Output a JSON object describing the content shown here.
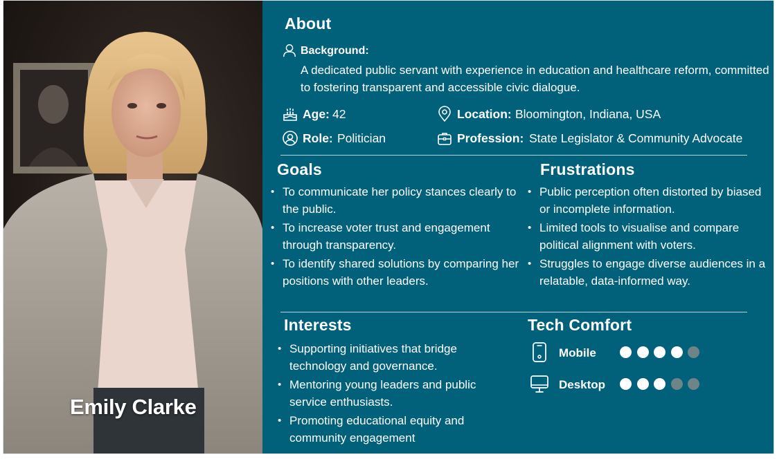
{
  "persona": {
    "name": "Emily Clarke",
    "photo_alt": "Portrait of Emily Clarke"
  },
  "about": {
    "title": "About",
    "background_label": "Background:",
    "background_text": "A dedicated public servant with experience in education and healthcare reform, committed to fostering transparent and accessible civic dialogue.",
    "age_label": "Age:",
    "age_value": "42",
    "location_label": "Location:",
    "location_value": "Bloomington, Indiana, USA",
    "role_label": "Role:",
    "role_value": "Politician",
    "profession_label": "Profession:",
    "profession_value": "State Legislator & Community Advocate"
  },
  "goals": {
    "title": "Goals",
    "items": [
      "To communicate her policy stances clearly to the public.",
      "To increase voter trust and engagement through transparency.",
      "To identify shared solutions by comparing her positions with other leaders."
    ]
  },
  "frustrations": {
    "title": "Frustrations",
    "items": [
      "Public perception often distorted by biased or incomplete information.",
      "Limited tools to visualise and compare political alignment with voters.",
      "Struggles to engage diverse audiences in a relatable, data-informed way."
    ]
  },
  "interests": {
    "title": "Interests",
    "items": [
      "Supporting initiatives that bridge technology and governance.",
      "Mentoring young leaders and public service enthusiasts.",
      "Promoting educational equity and community engagement"
    ]
  },
  "tech_comfort": {
    "title": "Tech Comfort",
    "scale_max": 5,
    "devices": [
      {
        "label": "Mobile",
        "icon": "mobile-phone-icon",
        "level": 4
      },
      {
        "label": "Desktop",
        "icon": "desktop-monitor-icon",
        "level": 3
      }
    ]
  },
  "colors": {
    "panel_bg": "#01617a",
    "dot_on": "#ffffff",
    "dot_off": "#6f8487"
  }
}
